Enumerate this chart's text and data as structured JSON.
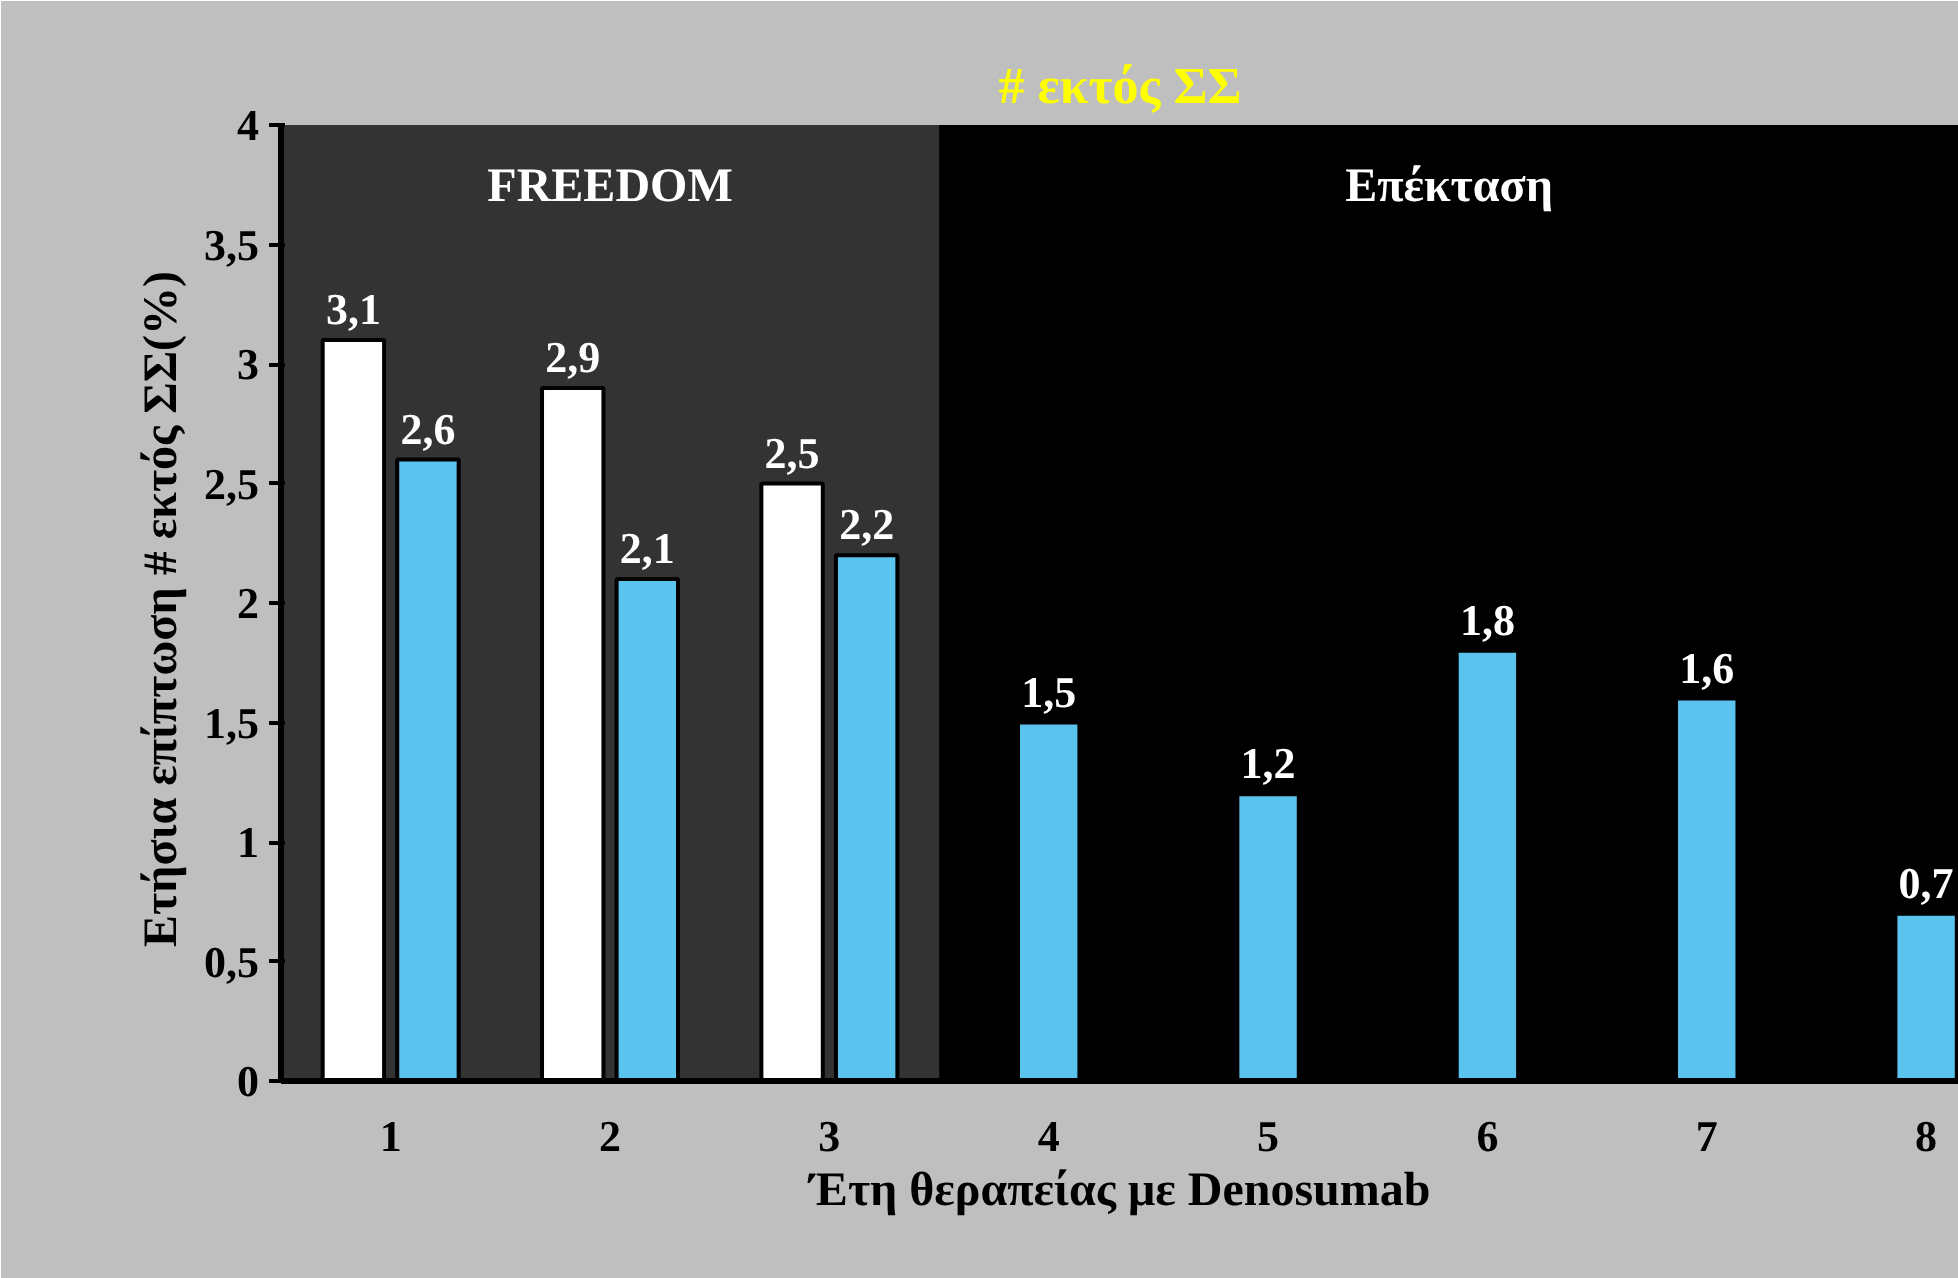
{
  "chart_data": {
    "type": "bar",
    "title": "# εκτός ΣΣ",
    "xlabel": "Έτη θεραπείας με Denosumab",
    "ylabel": "Ετήσια  επίπτωση # εκτός ΣΣ(%)",
    "x": [
      1,
      2,
      3,
      4,
      5,
      6,
      7,
      8
    ],
    "series": [
      {
        "color": "#ffffff",
        "values": [
          3.1,
          2.9,
          2.5,
          null,
          null,
          null,
          null,
          null
        ],
        "value_labels": [
          "3,1",
          "2,9",
          "2,5",
          null,
          null,
          null,
          null,
          null
        ]
      },
      {
        "color": "#5bc4ee",
        "values": [
          2.6,
          2.1,
          2.2,
          1.5,
          1.2,
          1.8,
          1.6,
          0.7
        ],
        "value_labels": [
          "2,6",
          "2,1",
          "2,2",
          "1,5",
          "1,2",
          "1,8",
          "1,6",
          "0,7"
        ]
      }
    ],
    "xlim": [
      0.5,
      8.15
    ],
    "xticks": [
      1,
      2,
      3,
      4,
      5,
      6,
      7,
      8
    ],
    "ylim": [
      0,
      4
    ],
    "yticks": [
      0,
      {
        "value": 0.5,
        "label": "0,5"
      },
      1,
      {
        "value": 1.5,
        "label": "1,5"
      },
      2,
      {
        "value": 2.5,
        "label": "2,5"
      },
      3,
      {
        "value": 3.5,
        "label": "3,5"
      },
      4
    ],
    "bands": [
      {
        "axis": "x",
        "from": 0.5,
        "to": 3.5,
        "label": "FREEDOM",
        "color": "#333333"
      },
      {
        "axis": "x",
        "from": 3.5,
        "to": 8.15,
        "label": "Επέκταση",
        "color": "#000000"
      }
    ]
  }
}
